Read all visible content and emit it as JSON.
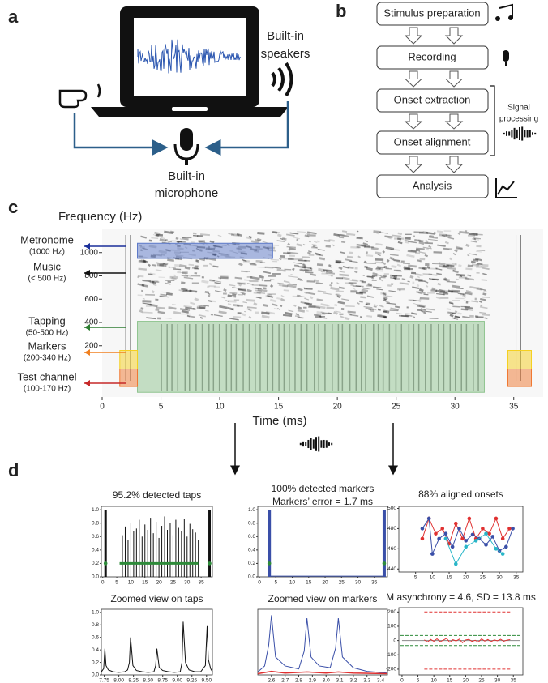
{
  "panel_labels": [
    "a",
    "b",
    "c",
    "d"
  ],
  "panel_a": {
    "speakers": [
      "Built-in",
      "speakers"
    ],
    "microphone": [
      "Built-in",
      "microphone"
    ]
  },
  "panel_b": {
    "steps": [
      "Stimulus preparation",
      "Recording",
      "Onset extraction",
      "Onset alignment",
      "Analysis"
    ],
    "bracket_label": [
      "Signal",
      "processing"
    ]
  },
  "chart_data": [
    {
      "type": "spectrogram",
      "title": "Frequency (Hz)",
      "xlabel": "Time (ms)",
      "xlim": [
        0,
        37.5
      ],
      "ylim": [
        -240,
        1200
      ],
      "xticks": [
        0,
        5,
        10,
        15,
        20,
        25,
        30,
        35
      ],
      "yticks": [
        200,
        400,
        600,
        800,
        1000
      ],
      "regions": [
        {
          "x": [
            3,
            14.5
          ],
          "y": [
            950,
            1080
          ],
          "color": "#5b78c8"
        },
        {
          "x": [
            3,
            32.5
          ],
          "y": [
            -200,
            410
          ],
          "color": "#8fc48f"
        },
        {
          "x": [
            1.5,
            3
          ],
          "y": [
            0,
            160
          ],
          "color": "#f5d020"
        },
        {
          "x": [
            1.5,
            3
          ],
          "y": [
            -150,
            0
          ],
          "color": "#f07830"
        },
        {
          "x": [
            34.5,
            36.5
          ],
          "y": [
            0,
            160
          ],
          "color": "#f5d020"
        },
        {
          "x": [
            34.5,
            36.5
          ],
          "y": [
            -150,
            0
          ],
          "color": "#f07830"
        }
      ],
      "annotations": [
        {
          "label": "Metronome",
          "sublabel": "(1000 Hz)",
          "color": "#1a2f9a"
        },
        {
          "label": "Music",
          "sublabel": "(< 500 Hz)",
          "color": "#111111"
        },
        {
          "label": "Tapping",
          "sublabel": "(50-500 Hz)",
          "color": "#2e7d32"
        },
        {
          "label": "Markers",
          "sublabel": "(200-340 Hz)",
          "color": "#f08020"
        },
        {
          "label": "Test channel",
          "sublabel": "(100-170 Hz)",
          "color": "#c62828"
        }
      ]
    },
    {
      "type": "mini",
      "title": "95.2% detected taps",
      "xlim": [
        -0.5,
        39
      ],
      "ylim": [
        0,
        1.05
      ],
      "xticks": [
        0,
        5,
        10,
        15,
        20,
        25,
        30,
        35
      ],
      "yticks": [
        {
          "value": 0,
          "label": "0.0"
        },
        0.2,
        0.4,
        0.6,
        0.8,
        {
          "value": 1,
          "label": "1.0"
        }
      ],
      "series": [
        {
          "type": "spike",
          "color": "#111111",
          "x": [
            7,
            8,
            9,
            10,
            11,
            12,
            13,
            14,
            15,
            16,
            17,
            18,
            19,
            20,
            21,
            22,
            23,
            24,
            25,
            26,
            27,
            28,
            29,
            30,
            31,
            32,
            33,
            34
          ],
          "values": [
            0.62,
            0.75,
            0.55,
            0.8,
            0.68,
            0.72,
            0.85,
            0.6,
            0.78,
            0.7,
            0.88,
            0.65,
            0.82,
            0.58,
            0.76,
            0.9,
            0.7,
            0.8,
            0.62,
            0.85,
            0.73,
            0.68,
            0.86,
            0.6,
            0.79,
            0.71,
            0.66,
            0.55
          ]
        },
        {
          "type": "spike",
          "color": "#111111",
          "width": 3,
          "x": [
            1,
            38
          ],
          "values": [
            1,
            1
          ]
        },
        {
          "type": "line",
          "color": "#2e8b3a",
          "width": 3,
          "x": [
            6,
            34
          ],
          "values": [
            0.2,
            0.2
          ]
        },
        {
          "type": "scatter",
          "color": "#2e8b3a",
          "x": [
            1,
            38
          ],
          "values": [
            0.2,
            0.2
          ]
        }
      ]
    },
    {
      "type": "mini",
      "title": "100% detected markers",
      "subtitle": "Markers’ error = 1.7 ms",
      "xlim": [
        -0.5,
        39
      ],
      "ylim": [
        0,
        1.05
      ],
      "xticks": [
        0,
        5,
        10,
        15,
        20,
        25,
        30,
        35
      ],
      "yticks": [
        {
          "value": 0,
          "label": "0.0"
        },
        0.2,
        0.4,
        0.6,
        0.8,
        {
          "value": 1,
          "label": "1.0"
        }
      ],
      "series": [
        {
          "type": "spike",
          "color": "#3a4fa8",
          "width": 4,
          "x": [
            3,
            38
          ],
          "values": [
            1,
            1
          ]
        },
        {
          "type": "line",
          "color": "#3a4fa8",
          "width": 1,
          "x": [
            3,
            38
          ],
          "values": [
            0.01,
            0.01
          ]
        },
        {
          "type": "scatter",
          "color": "#2e8b3a",
          "x": [
            3,
            38
          ],
          "values": [
            0.2,
            0.2
          ]
        }
      ]
    },
    {
      "type": "mini",
      "title": "88% aligned onsets",
      "xlim": [
        0,
        37
      ],
      "ylim": [
        437,
        502
      ],
      "xticks": [
        5,
        10,
        15,
        20,
        25,
        30,
        35
      ],
      "yticks": [
        440,
        460,
        480,
        500
      ],
      "series": [
        {
          "type": "linemarker",
          "color": "#e03030",
          "x": [
            7,
            9,
            11,
            13,
            15,
            17,
            19,
            21,
            23,
            25,
            27,
            29,
            31,
            33
          ],
          "values": [
            470,
            490,
            475,
            480,
            465,
            485,
            470,
            490,
            470,
            480,
            475,
            490,
            470,
            480
          ]
        },
        {
          "type": "linemarker",
          "color": "#3a4fa8",
          "x": [
            7,
            9,
            10,
            12,
            14,
            16,
            18,
            20,
            22,
            24,
            26,
            28,
            30,
            32,
            34
          ],
          "values": [
            480,
            490,
            455,
            470,
            475,
            462,
            480,
            468,
            474,
            470,
            464,
            472,
            458,
            462,
            480
          ]
        },
        {
          "type": "linemarker",
          "color": "#29b6c8",
          "x": [
            14,
            17,
            20,
            23,
            26,
            29,
            31
          ],
          "values": [
            470,
            445,
            462,
            468,
            475,
            460,
            455
          ]
        }
      ]
    },
    {
      "type": "mini",
      "title": "Zoomed view on taps",
      "xlim": [
        7.7,
        9.6
      ],
      "ylim": [
        0,
        1.05
      ],
      "xticks": [
        {
          "value": 7.75,
          "label": "7.75"
        },
        {
          "value": 8,
          "label": "8.00"
        },
        8.25,
        {
          "value": 8.5,
          "label": "8.50"
        },
        8.75,
        {
          "value": 9,
          "label": "9.00"
        },
        9.25,
        {
          "value": 9.5,
          "label": "9.50"
        }
      ],
      "yticks": [
        {
          "value": 0,
          "label": "0.0"
        },
        0.2,
        0.4,
        0.6,
        0.8,
        {
          "value": 1,
          "label": "1.0"
        }
      ],
      "series": [
        {
          "type": "line",
          "color": "#111111",
          "width": 1,
          "x": [
            7.7,
            7.74,
            7.76,
            7.78,
            7.82,
            7.9,
            8.0,
            8.1,
            8.15,
            8.18,
            8.2,
            8.24,
            8.3,
            8.4,
            8.5,
            8.6,
            8.63,
            8.65,
            8.69,
            8.75,
            8.85,
            8.95,
            9.05,
            9.08,
            9.1,
            9.14,
            9.2,
            9.3,
            9.4,
            9.48,
            9.51,
            9.53,
            9.57,
            9.6
          ],
          "values": [
            0.05,
            0.1,
            0.42,
            0.15,
            0.08,
            0.05,
            0.04,
            0.05,
            0.08,
            0.2,
            0.6,
            0.15,
            0.07,
            0.05,
            0.04,
            0.05,
            0.15,
            0.42,
            0.12,
            0.07,
            0.05,
            0.04,
            0.05,
            0.2,
            0.85,
            0.2,
            0.08,
            0.05,
            0.05,
            0.15,
            0.78,
            0.25,
            0.1,
            0.05
          ]
        }
      ]
    },
    {
      "type": "mini",
      "title": "Zoomed view on markers",
      "xlim": [
        2.5,
        3.45
      ],
      "ylim": [
        0,
        1.1
      ],
      "xticks": [
        2.6,
        2.7,
        2.8,
        2.9,
        {
          "value": 3,
          "label": "3.0"
        },
        3.1,
        3.2,
        3.3,
        3.4
      ],
      "series": [
        {
          "type": "line",
          "color": "#3a4fa8",
          "width": 1,
          "x": [
            2.5,
            2.55,
            2.58,
            2.6,
            2.63,
            2.7,
            2.8,
            2.84,
            2.86,
            2.89,
            2.95,
            3.03,
            3.07,
            3.09,
            3.12,
            3.2,
            3.3,
            3.45
          ],
          "values": [
            0.05,
            0.15,
            0.5,
            1.0,
            0.3,
            0.15,
            0.1,
            0.4,
            0.95,
            0.3,
            0.15,
            0.12,
            0.45,
            0.95,
            0.3,
            0.12,
            0.06,
            0.03
          ]
        },
        {
          "type": "line",
          "color": "#e03030",
          "width": 1.5,
          "x": [
            2.5,
            2.6,
            2.7,
            2.86,
            3.0,
            3.09,
            3.2,
            3.45
          ],
          "values": [
            0.02,
            0.06,
            0.03,
            0.05,
            0.03,
            0.05,
            0.03,
            0.02
          ]
        }
      ]
    },
    {
      "type": "mini",
      "title": "M asynchrony = 4.6, SD = 13.8 ms",
      "xlim": [
        -1,
        38
      ],
      "ylim": [
        -240,
        230
      ],
      "xticks": [
        0,
        5,
        10,
        15,
        20,
        25,
        30,
        35
      ],
      "yticks": [
        -200,
        -100,
        0,
        100,
        200
      ],
      "series": [
        {
          "type": "line",
          "color": "#e03030",
          "dashed": true,
          "width": 1,
          "x": [
            7,
            34
          ],
          "values": [
            200,
            200
          ]
        },
        {
          "type": "line",
          "color": "#e03030",
          "dashed": true,
          "width": 1,
          "x": [
            7,
            34
          ],
          "values": [
            -200,
            -200
          ]
        },
        {
          "type": "line",
          "color": "#2e8b3a",
          "dashed": true,
          "width": 1,
          "x": [
            -0.5,
            37
          ],
          "values": [
            35,
            35
          ]
        },
        {
          "type": "line",
          "color": "#2e8b3a",
          "dashed": true,
          "width": 1,
          "x": [
            -0.5,
            37
          ],
          "values": [
            -35,
            -35
          ]
        },
        {
          "type": "line",
          "color": "#888888",
          "width": 1,
          "x": [
            0,
            37
          ],
          "values": [
            0,
            0
          ]
        },
        {
          "type": "line",
          "color": "#e03030",
          "width": 1,
          "x": [
            7,
            8,
            9,
            10,
            11,
            12,
            13,
            14,
            15,
            16,
            17,
            18,
            19,
            20,
            21,
            22,
            23,
            24,
            25,
            26,
            27,
            28,
            29,
            30,
            31,
            32,
            33,
            34
          ],
          "values": [
            5,
            -10,
            8,
            -5,
            12,
            -8,
            3,
            15,
            -12,
            6,
            -3,
            10,
            -15,
            4,
            8,
            -6,
            2,
            -10,
            12,
            -4,
            7,
            -8,
            5,
            -2,
            9,
            -5,
            3,
            6
          ]
        }
      ]
    }
  ]
}
